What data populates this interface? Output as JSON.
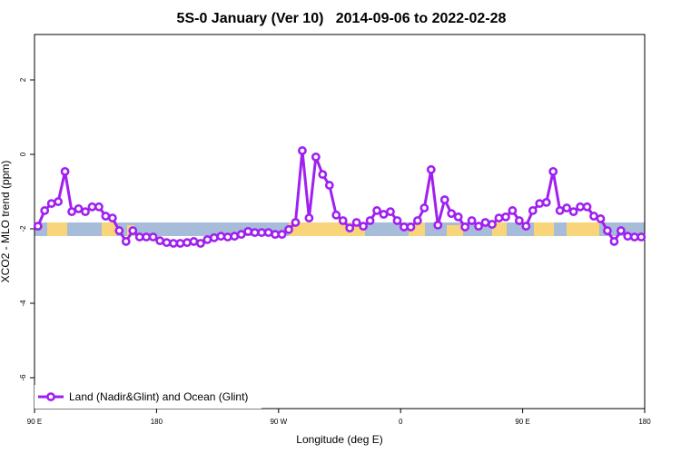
{
  "chart_data": {
    "type": "line",
    "title": "5S-0 January (Ver 10)   2014-09-06 to 2022-02-28",
    "xlabel": "Longitude (deg E)",
    "ylabel": "XCO2 - MLO trend (ppm)",
    "xlim": [
      90,
      540
    ],
    "ylim": [
      -6.83,
      3.22
    ],
    "xticks": [
      {
        "value": 90,
        "label": "90 E"
      },
      180,
      {
        "value": 270,
        "label": "90 W"
      },
      {
        "value": 360,
        "label": "0"
      },
      {
        "value": 450,
        "label": "90 E"
      },
      {
        "value": 540,
        "label": "180"
      }
    ],
    "yticks": [
      2,
      0,
      -2,
      -4,
      -6
    ],
    "legend": "bottom-left",
    "x": [
      92.5,
      97.5,
      102.5,
      107.5,
      112.5,
      117.5,
      122.5,
      127.5,
      132.5,
      137.5,
      142.5,
      147.5,
      152.5,
      157.5,
      162.5,
      167.5,
      172.5,
      177.5,
      182.5,
      187.5,
      192.5,
      197.5,
      202.5,
      207.5,
      212.5,
      217.5,
      222.5,
      227.5,
      232.5,
      237.5,
      242.5,
      247.5,
      252.5,
      257.5,
      262.5,
      267.5,
      272.5,
      277.5,
      282.5,
      287.5,
      292.5,
      297.5,
      302.5,
      307.5,
      312.5,
      317.5,
      322.5,
      327.5,
      332.5,
      337.5,
      342.5,
      347.5,
      352.5,
      357.5,
      362.5,
      367.5,
      372.5,
      377.5,
      382.5,
      387.5,
      392.5,
      397.5,
      402.5,
      407.5,
      412.5,
      417.5,
      422.5,
      427.5,
      432.5,
      437.5,
      442.5,
      447.5,
      452.5,
      457.5,
      462.5,
      467.5,
      472.5,
      477.5,
      482.5,
      487.5,
      492.5,
      497.5,
      502.5,
      507.5,
      512.5,
      517.5,
      522.5,
      527.5,
      532.5,
      537.5
    ],
    "series": [
      {
        "name": "Land (Nadir&Glint) and Ocean (Glint)",
        "color": "#a020f0",
        "values": [
          -1.93,
          -1.51,
          -1.32,
          -1.27,
          -0.46,
          -1.54,
          -1.46,
          -1.54,
          -1.41,
          -1.41,
          -1.66,
          -1.71,
          -2.05,
          -2.34,
          -2.05,
          -2.22,
          -2.22,
          -2.22,
          -2.32,
          -2.37,
          -2.39,
          -2.39,
          -2.37,
          -2.34,
          -2.39,
          -2.29,
          -2.24,
          -2.2,
          -2.22,
          -2.2,
          -2.15,
          -2.07,
          -2.1,
          -2.1,
          -2.1,
          -2.15,
          -2.15,
          -2.02,
          -1.83,
          0.1,
          -1.71,
          -0.07,
          -0.54,
          -0.83,
          -1.63,
          -1.78,
          -1.98,
          -1.83,
          -1.93,
          -1.78,
          -1.51,
          -1.61,
          -1.54,
          -1.78,
          -1.95,
          -1.95,
          -1.78,
          -1.44,
          -0.41,
          -1.9,
          -1.22,
          -1.59,
          -1.68,
          -1.95,
          -1.78,
          -1.93,
          -1.83,
          -1.88,
          -1.71,
          -1.68,
          -1.51,
          -1.78,
          -1.93,
          -1.51,
          -1.32,
          -1.29,
          -0.46,
          -1.51,
          -1.44,
          -1.54,
          -1.41,
          -1.41,
          -1.66,
          -1.73,
          -2.05,
          -2.34,
          -2.05,
          -2.2,
          -2.22,
          -2.22
        ]
      }
    ]
  }
}
